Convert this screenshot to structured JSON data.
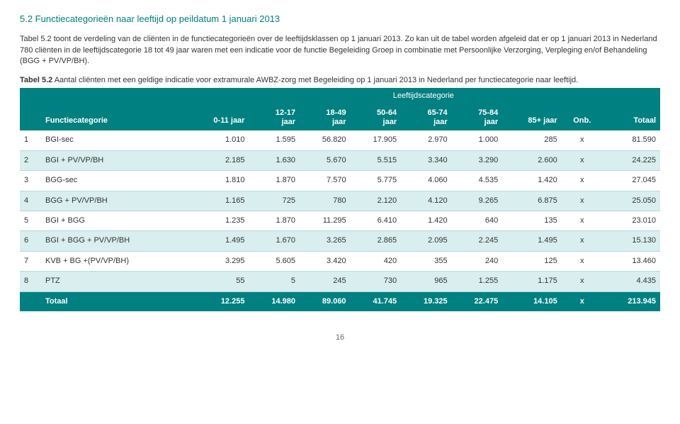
{
  "section_title": "5.2 Functiecategorieën naar leeftijd op peildatum 1 januari 2013",
  "para1": "Tabel 5.2 toont de verdeling van de cliënten in de functiecategorieën over de leeftijdsklassen op 1 januari 2013. Zo kan uit de tabel worden afgeleid dat er op 1 januari 2013 in Nederland 780 cliënten in de leeftijdscategorie 18 tot 49 jaar waren met een indicatie voor de functie Begeleiding Groep in combinatie met Persoonlijke Verzorging, Verpleging en/of Behandeling (BGG + PV/VP/BH).",
  "caption_bold": "Tabel 5.2",
  "caption_rest": " Aantal cliënten met een geldige indicatie voor extramurale AWBZ-zorg met Begeleiding op 1 januari 2013 in Nederland per functiecategorie naar leeftijd.",
  "super_header": "Leeftijdscategorie",
  "columns": {
    "idx": "",
    "cat": "Functiecategorie",
    "c0": "0-11 jaar",
    "c1": "12-17",
    "c1b": "jaar",
    "c2": "18-49",
    "c2b": "jaar",
    "c3": "50-64",
    "c3b": "jaar",
    "c4": "65-74",
    "c4b": "jaar",
    "c5": "75-84",
    "c5b": "jaar",
    "c6": "85+ jaar",
    "c7": "Onb.",
    "c8": "Totaal"
  },
  "rows": [
    {
      "i": "1",
      "cat": "BGI-sec",
      "v": [
        "1.010",
        "1.595",
        "56.820",
        "17.905",
        "2.970",
        "1.000",
        "285",
        "x",
        "81.590"
      ]
    },
    {
      "i": "2",
      "cat": "BGI + PV/VP/BH",
      "v": [
        "2.185",
        "1.630",
        "5.670",
        "5.515",
        "3.340",
        "3.290",
        "2.600",
        "x",
        "24.225"
      ]
    },
    {
      "i": "3",
      "cat": "BGG-sec",
      "v": [
        "1.810",
        "1.870",
        "7.570",
        "5.775",
        "4.060",
        "4.535",
        "1.420",
        "x",
        "27.045"
      ]
    },
    {
      "i": "4",
      "cat": "BGG + PV/VP/BH",
      "v": [
        "1.165",
        "725",
        "780",
        "2.120",
        "4.120",
        "9.265",
        "6.875",
        "x",
        "25.050"
      ]
    },
    {
      "i": "5",
      "cat": "BGI + BGG",
      "v": [
        "1.235",
        "1.870",
        "11.295",
        "6.410",
        "1.420",
        "640",
        "135",
        "x",
        "23.010"
      ]
    },
    {
      "i": "6",
      "cat": "BGI + BGG + PV/VP/BH",
      "v": [
        "1.495",
        "1.670",
        "3.265",
        "2.865",
        "2.095",
        "2.245",
        "1.495",
        "x",
        "15.130"
      ]
    },
    {
      "i": "7",
      "cat": "KVB + BG +(PV/VP/BH)",
      "v": [
        "3.295",
        "5.605",
        "3.420",
        "420",
        "355",
        "240",
        "125",
        "x",
        "13.460"
      ]
    },
    {
      "i": "8",
      "cat": "PTZ",
      "v": [
        "55",
        "5",
        "245",
        "730",
        "965",
        "1.255",
        "1.175",
        "x",
        "4.435"
      ]
    }
  ],
  "total": {
    "label": "Totaal",
    "v": [
      "12.255",
      "14.980",
      "89.060",
      "41.745",
      "19.325",
      "22.475",
      "14.105",
      "x",
      "213.945"
    ]
  },
  "footer_page": "16",
  "colors": {
    "teal": "#008080",
    "even_row": "#d9eeee",
    "odd_row": "#ffffff"
  },
  "column_alignment": {
    "idx": "left",
    "cat": "left",
    "v0": "right",
    "v1": "right",
    "v2": "right",
    "v3": "right",
    "v4": "right",
    "v5": "right",
    "v6": "right",
    "v7": "center",
    "v8": "right"
  }
}
